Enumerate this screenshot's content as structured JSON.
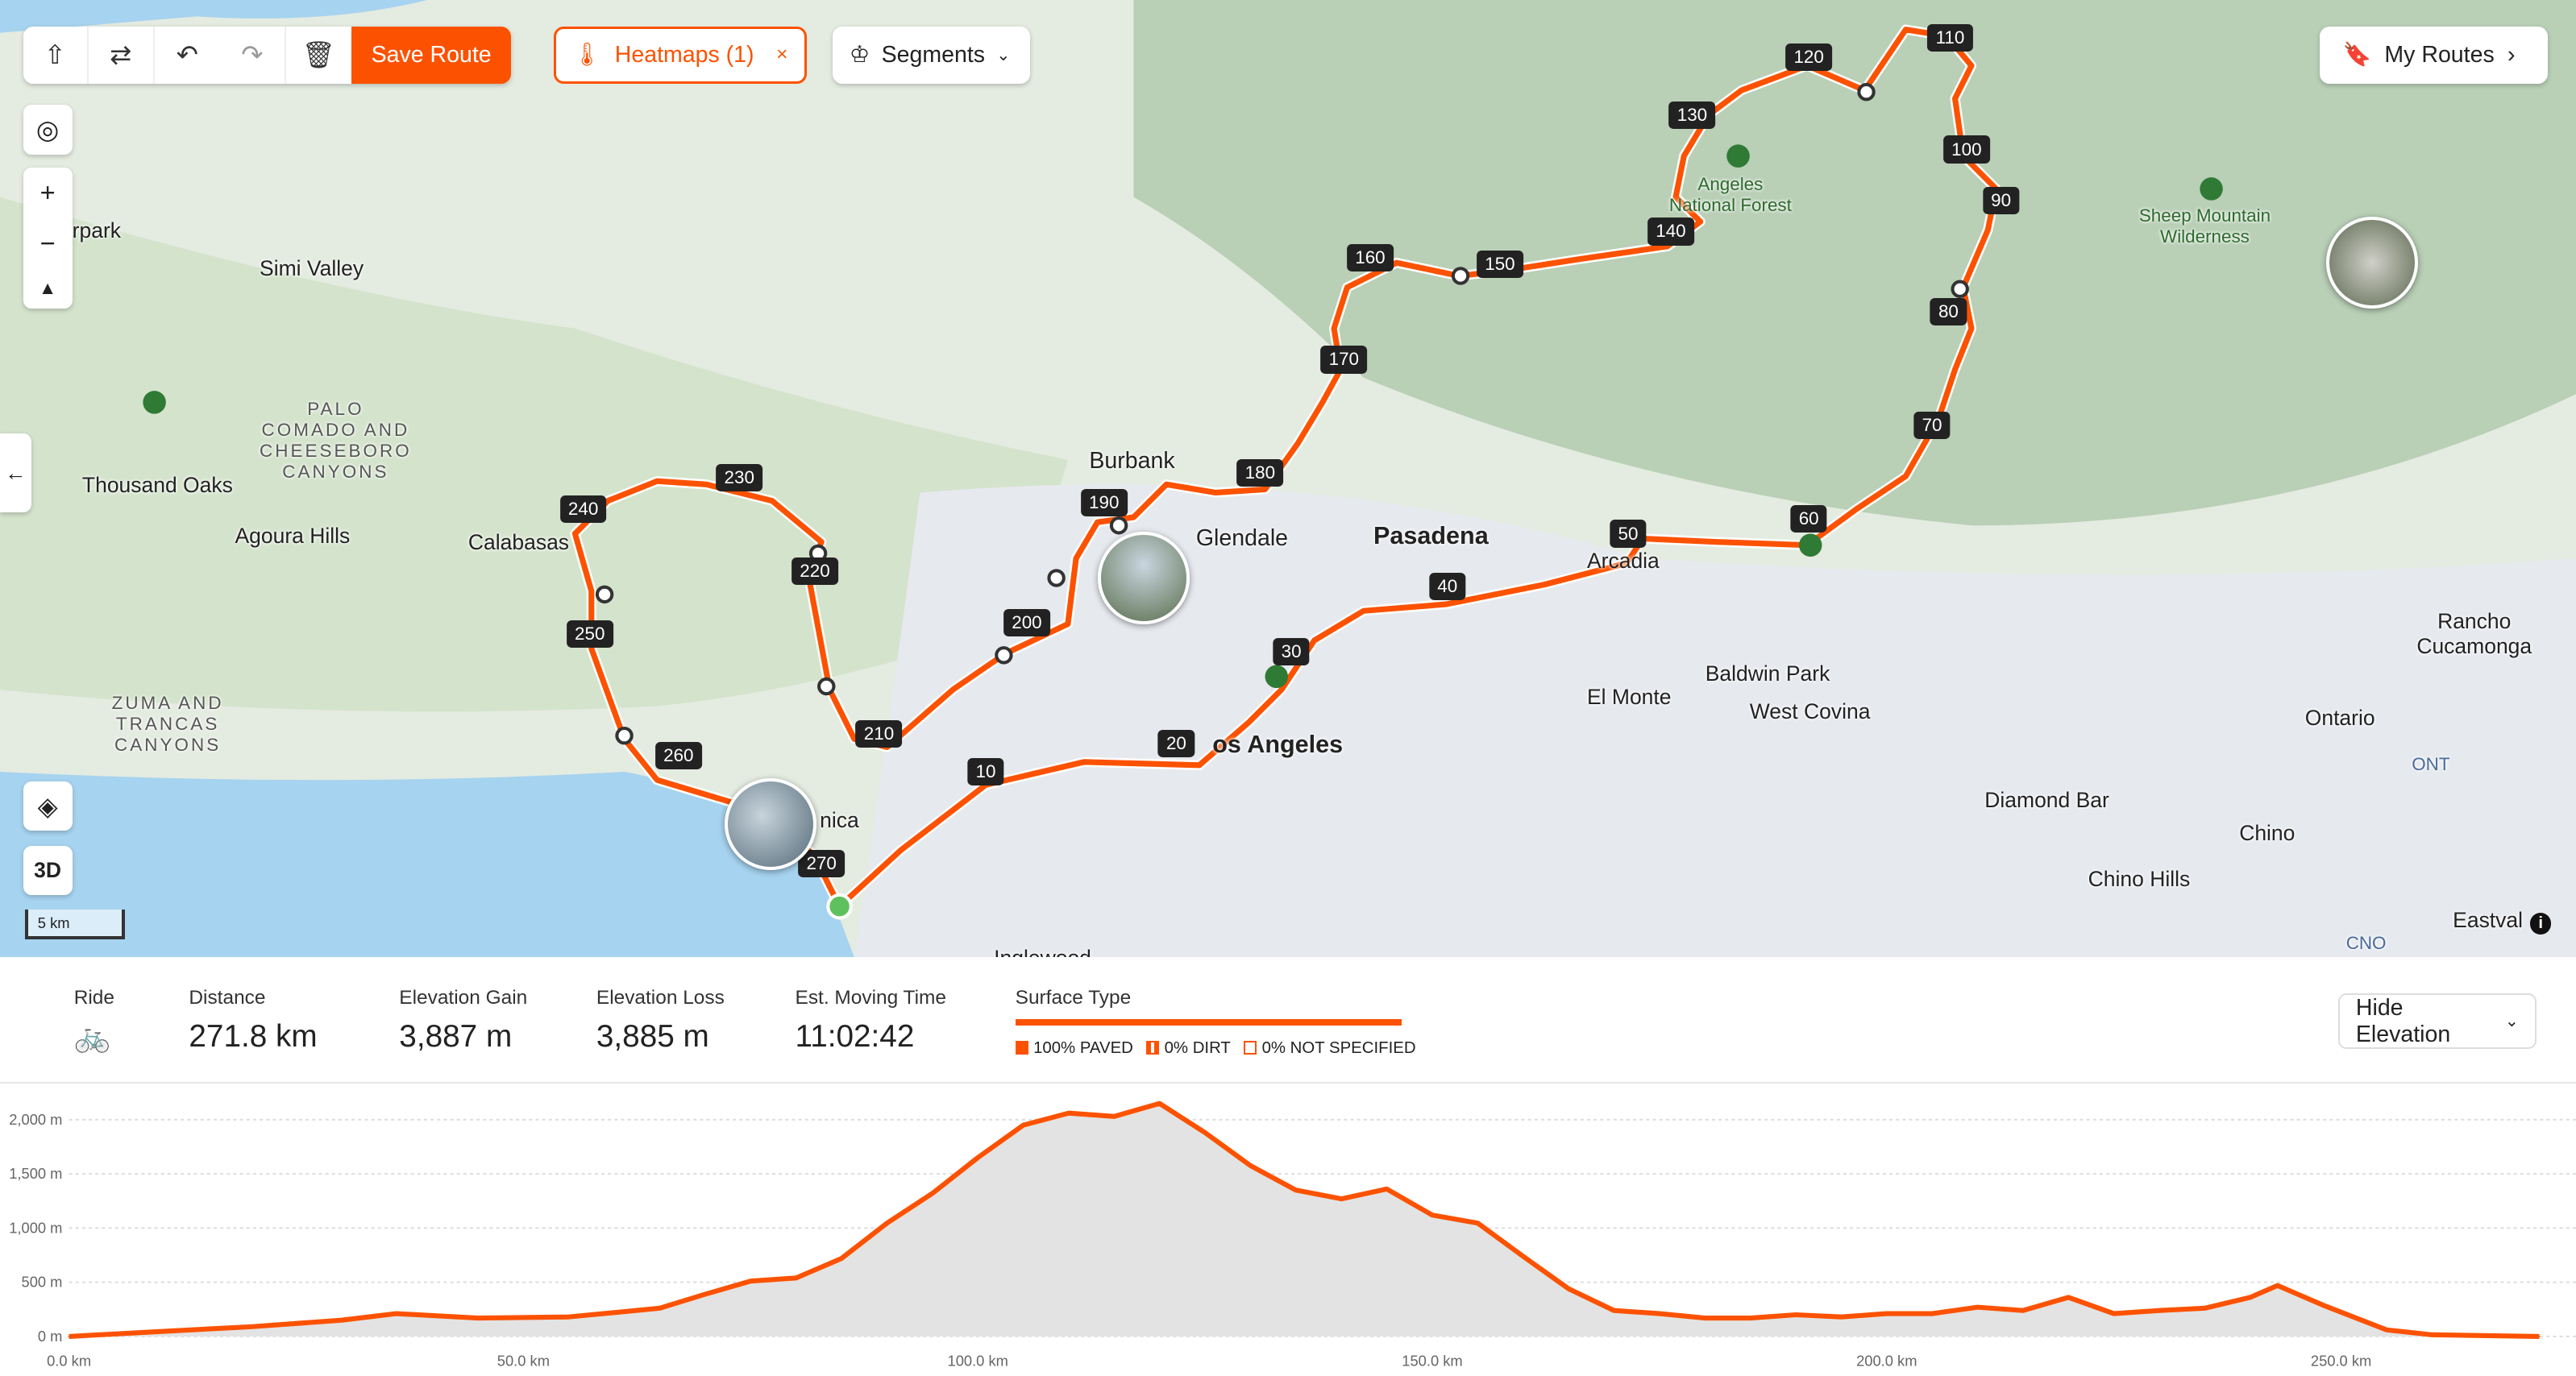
{
  "toolbar": {
    "save_label": "Save Route",
    "heatmaps_label": "Heatmaps (1)",
    "heatmaps_close": "×",
    "segments_label": "Segments",
    "my_routes_label": "My Routes",
    "threed_label": "3D",
    "scale_label": "5 km",
    "icons": [
      "upload-icon",
      "reverse-icon",
      "undo-icon",
      "redo-icon",
      "trash-icon"
    ]
  },
  "map": {
    "places": [
      {
        "t": "Simi Valley",
        "c": ""
      },
      {
        "t": "Thousand Oaks",
        "c": ""
      },
      {
        "t": "Agoura Hills",
        "c": ""
      },
      {
        "t": "Calabasas",
        "c": ""
      },
      {
        "t": "rpark",
        "c": ""
      },
      {
        "t": "PALO\nCOMADO AND\nCHEESEBORO\nCANYONS",
        "c": "caps"
      },
      {
        "t": "ZUMA AND\nTRANCAS\nCANYONS",
        "c": "caps"
      },
      {
        "t": "Burbank",
        "c": "md"
      },
      {
        "t": "Glendale",
        "c": "md"
      },
      {
        "t": "Pasadena",
        "c": "big"
      },
      {
        "t": "Arcadia",
        "c": ""
      },
      {
        "t": "os Angeles",
        "c": "big"
      },
      {
        "t": "nica",
        "c": ""
      },
      {
        "t": "El Monte",
        "c": ""
      },
      {
        "t": "Baldwin Park",
        "c": ""
      },
      {
        "t": "West Covina",
        "c": ""
      },
      {
        "t": "Diamond Bar",
        "c": ""
      },
      {
        "t": "Ontario",
        "c": ""
      },
      {
        "t": "Chino",
        "c": ""
      },
      {
        "t": "Chino Hills",
        "c": ""
      },
      {
        "t": "Rancho\nCucamonga",
        "c": "caps2"
      },
      {
        "t": "Eastval",
        "c": ""
      },
      {
        "t": "Inglewood",
        "c": ""
      },
      {
        "t": "ONT",
        "c": "air"
      },
      {
        "t": "CNO",
        "c": "air"
      },
      {
        "t": "Angeles\nNational Forest",
        "c": "park"
      },
      {
        "t": "Sheep Mountain\nWilderness",
        "c": "park"
      }
    ],
    "km_markers": [
      "10",
      "20",
      "30",
      "40",
      "50",
      "60",
      "70",
      "80",
      "90",
      "100",
      "110",
      "120",
      "130",
      "140",
      "150",
      "160",
      "170",
      "180",
      "190",
      "200",
      "210",
      "220",
      "230",
      "240",
      "250",
      "260",
      "270"
    ],
    "route_color": "#fc5200"
  },
  "stats": {
    "ride": {
      "label": "Ride",
      "icon": "bike-icon"
    },
    "distance": {
      "label": "Distance",
      "value": "271.8 km"
    },
    "gain": {
      "label": "Elevation Gain",
      "value": "3,887 m"
    },
    "loss": {
      "label": "Elevation Loss",
      "value": "3,885 m"
    },
    "time": {
      "label": "Est. Moving Time",
      "value": "11:02:42"
    },
    "surface": {
      "label": "Surface Type",
      "paved": "100% PAVED",
      "dirt": "0% DIRT",
      "ns": "0% NOT SPECIFIED"
    },
    "hide_label": "Hide Elevation"
  },
  "chart_data": {
    "type": "area",
    "xlim": [
      0,
      271.8
    ],
    "ylim": [
      0,
      2000
    ],
    "x_ticks": [
      "0.0 km",
      "50.0 km",
      "100.0 km",
      "150.0 km",
      "200.0 km",
      "250.0 km"
    ],
    "x_tick_values": [
      0,
      50,
      100,
      150,
      200,
      250
    ],
    "y_ticks": [
      "0 m",
      "500 m",
      "1,000 m",
      "1,500 m",
      "2,000 m"
    ],
    "y_tick_values": [
      0,
      500,
      1000,
      1500,
      2000
    ],
    "grid": true,
    "color": "#fc5200",
    "x": [
      0,
      10,
      20,
      30,
      36,
      45,
      55,
      65,
      70,
      75,
      80,
      85,
      90,
      95,
      100,
      105,
      110,
      115,
      120,
      125,
      130,
      135,
      140,
      145,
      150,
      155,
      160,
      165,
      170,
      175,
      180,
      185,
      190,
      195,
      200,
      205,
      210,
      215,
      220,
      225,
      230,
      235,
      240,
      243,
      248,
      255,
      260,
      271.8
    ],
    "y": [
      0,
      45,
      90,
      150,
      210,
      170,
      180,
      260,
      390,
      510,
      540,
      720,
      1045,
      1320,
      1650,
      1950,
      2060,
      2030,
      2150,
      1880,
      1575,
      1350,
      1270,
      1360,
      1120,
      1045,
      740,
      440,
      240,
      210,
      170,
      170,
      200,
      180,
      210,
      210,
      270,
      240,
      360,
      210,
      240,
      260,
      360,
      470,
      290,
      60,
      15,
      0
    ]
  }
}
